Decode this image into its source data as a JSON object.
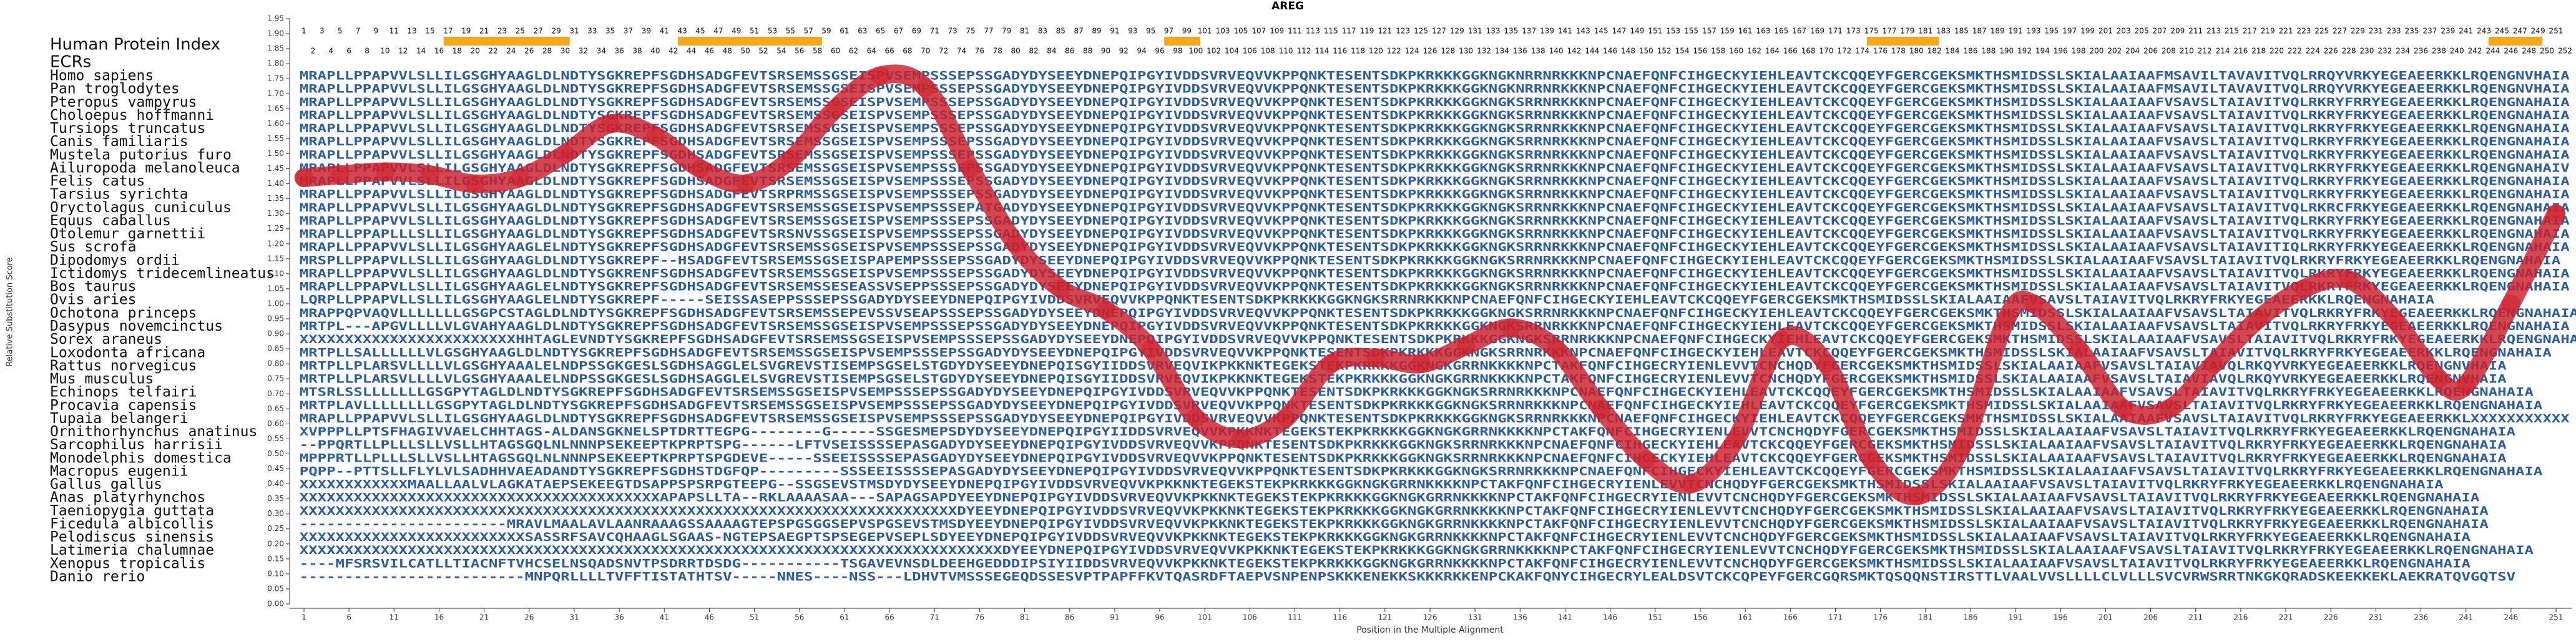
{
  "title": "AREG",
  "y_axis": {
    "label": "Relative Substitution Score",
    "ylim": [
      0,
      1.95
    ],
    "yticks": [
      {
        "value": 0,
        "label": "0.00"
      },
      {
        "value": 0.05,
        "label": "0.05"
      },
      {
        "value": 0.1,
        "label": "0.10"
      },
      {
        "value": 0.15,
        "label": "0.15"
      },
      {
        "value": 0.2,
        "label": "0.20"
      },
      {
        "value": 0.25,
        "label": "0.25"
      },
      {
        "value": 0.3,
        "label": "0.30"
      },
      {
        "value": 0.35,
        "label": "0.35"
      },
      {
        "value": 0.4,
        "label": "0.40"
      },
      {
        "value": 0.45,
        "label": "0.45"
      },
      {
        "value": 0.5,
        "label": "0.50"
      },
      {
        "value": 0.55,
        "label": "0.55"
      },
      {
        "value": 0.6,
        "label": "0.60"
      },
      {
        "value": 0.65,
        "label": "0.65"
      },
      {
        "value": 0.7,
        "label": "0.70"
      },
      {
        "value": 0.75,
        "label": "0.75"
      },
      {
        "value": 0.8,
        "label": "0.80"
      },
      {
        "value": 0.85,
        "label": "0.85"
      },
      {
        "value": 0.9,
        "label": "0.90"
      },
      {
        "value": 0.95,
        "label": "0.95"
      },
      {
        "value": 1,
        "label": "1.00"
      },
      {
        "value": 1.05,
        "label": "1.05"
      },
      {
        "value": 1.1,
        "label": "1.10"
      },
      {
        "value": 1.15,
        "label": "1.15"
      },
      {
        "value": 1.2,
        "label": "1.20"
      },
      {
        "value": 1.25,
        "label": "1.25"
      },
      {
        "value": 1.3,
        "label": "1.30"
      },
      {
        "value": 1.35,
        "label": "1.35"
      },
      {
        "value": 1.4,
        "label": "1.40"
      },
      {
        "value": 1.45,
        "label": "1.45"
      },
      {
        "value": 1.5,
        "label": "1.50"
      },
      {
        "value": 1.55,
        "label": "1.55"
      },
      {
        "value": 1.6,
        "label": "1.60"
      },
      {
        "value": 1.65,
        "label": "1.65"
      },
      {
        "value": 1.7,
        "label": "1.70"
      },
      {
        "value": 1.75,
        "label": "1.75"
      },
      {
        "value": 1.8,
        "label": "1.80"
      },
      {
        "value": 1.85,
        "label": "1.85"
      },
      {
        "value": 1.9,
        "label": "1.90"
      },
      {
        "value": 1.95,
        "label": "1.95"
      }
    ]
  },
  "x_axis": {
    "label": "Position in the Multiple Alignment",
    "xlim": [
      1,
      252
    ],
    "xticks": [
      1,
      6,
      11,
      16,
      21,
      26,
      31,
      36,
      41,
      46,
      51,
      56,
      61,
      66,
      71,
      76,
      81,
      86,
      91,
      96,
      101,
      106,
      111,
      116,
      121,
      126,
      131,
      136,
      141,
      146,
      151,
      156,
      161,
      166,
      171,
      176,
      181,
      186,
      191,
      196,
      201,
      206,
      211,
      216,
      221,
      226,
      231,
      236,
      241,
      246,
      251
    ]
  },
  "curve": {
    "x": [
      1,
      5,
      10,
      15,
      20,
      25,
      30,
      35,
      40,
      45,
      50,
      55,
      60,
      65,
      70,
      75,
      80,
      85,
      90,
      95,
      100,
      105,
      110,
      115,
      120,
      125,
      130,
      135,
      140,
      145,
      150,
      155,
      160,
      165,
      170,
      175,
      180,
      185,
      190,
      193,
      198,
      203,
      208,
      213,
      218,
      223,
      228,
      233,
      238,
      241,
      246,
      251
    ],
    "values": [
      1.42,
      1.43,
      1.44,
      1.43,
      1.4,
      1.42,
      1.5,
      1.6,
      1.56,
      1.45,
      1.4,
      1.48,
      1.65,
      1.76,
      1.72,
      1.45,
      1.2,
      1.05,
      0.98,
      0.85,
      0.62,
      0.55,
      0.62,
      0.8,
      0.82,
      0.8,
      0.86,
      0.92,
      0.85,
      0.65,
      0.48,
      0.4,
      0.55,
      0.88,
      0.8,
      0.48,
      0.36,
      0.52,
      0.95,
      1.0,
      0.85,
      0.65,
      0.65,
      0.8,
      0.95,
      1.05,
      1.08,
      0.95,
      0.75,
      0.73,
      1.0,
      1.3
    ],
    "color": "#cc1f2a"
  },
  "index_label": "Human Protein Index",
  "human_index": [
    1,
    2,
    3,
    4,
    5,
    6,
    7,
    8,
    9,
    10,
    11,
    12,
    13,
    14,
    15,
    16,
    17,
    18,
    19,
    20,
    21,
    22,
    23,
    24,
    25,
    26,
    27,
    28,
    29,
    30,
    31,
    32,
    33,
    34,
    35,
    36,
    37,
    38,
    39,
    40,
    41,
    42,
    43,
    44,
    45,
    46,
    47,
    48,
    49,
    50,
    51,
    52,
    53,
    54,
    55,
    56,
    57,
    58,
    59,
    60,
    61,
    62,
    63,
    64,
    65,
    66,
    67,
    68,
    69,
    70,
    71,
    72,
    73,
    74,
    75,
    76,
    77,
    78,
    79,
    80,
    81,
    82,
    83,
    84,
    85,
    86,
    87,
    88,
    89,
    90,
    91,
    92,
    93,
    94,
    95,
    96,
    97,
    98,
    99,
    100,
    101,
    102,
    103,
    104,
    105,
    106,
    107,
    108,
    109,
    110,
    111,
    112,
    113,
    114,
    115,
    116,
    117,
    118,
    119,
    120,
    121,
    122,
    123,
    124,
    125,
    126,
    127,
    128,
    129,
    130,
    131,
    132,
    133,
    134,
    135,
    136,
    137,
    138,
    139,
    140,
    141,
    142,
    143,
    144,
    145,
    146,
    147,
    148,
    149,
    150,
    151,
    152,
    153,
    154,
    155,
    156,
    157,
    158,
    159,
    160,
    161,
    162,
    163,
    164,
    165,
    166,
    167,
    168,
    169,
    170,
    171,
    172,
    173,
    174,
    175,
    176,
    177,
    178,
    179,
    180,
    181,
    182,
    183,
    184,
    185,
    186,
    187,
    188,
    189,
    190,
    191,
    192,
    193,
    194,
    195,
    196,
    197,
    198,
    199,
    200,
    201,
    202,
    203,
    204,
    205,
    206,
    207,
    208,
    209,
    210,
    211,
    212,
    213,
    214,
    215,
    216,
    217,
    218,
    219,
    220,
    221,
    222,
    223,
    224,
    225,
    226,
    227,
    228,
    229,
    230,
    231,
    232,
    233,
    234,
    235,
    236,
    237,
    238,
    239,
    240,
    241,
    242,
    243,
    244,
    245,
    246,
    247,
    248,
    249,
    250,
    251,
    252
  ],
  "ecr_label": "ECRs",
  "ecrs": [
    [
      17,
      30
    ],
    [
      43,
      58
    ],
    [
      97,
      100
    ],
    [
      175,
      182
    ],
    [
      244,
      249
    ]
  ],
  "ecr_color": "#f5a81c",
  "species": [
    {
      "name": "Homo sapiens",
      "sequence": "MRAPLLPPAPVVLSLLILGSGHYAAGLDLNDTYSGKREPFSGDHSADGFEVTSRSEMSSGSEISPVSEMPSSSEPSSGADYDYSEEYDNEPQIPGYIVDDSVRVEQVVKPPQNKTESENTSDKPKRKKKGGKNGKNRRNRKKKNPCNAEFQNFCIHGECKYIEHLEAVTCKCQQEYFGERCGEKSMKTHSMIDSSLSKIALAAIAAFMSAVILTAVAVITVQLRRQYVRKYEGEAEERKKLRQENGNVHAIA"
    },
    {
      "name": "Pan troglodytes",
      "sequence": "MRAPLLPPAPVVLSLLILGSGHYAAGLDLNDTYSGKREPFSGDHSADGFEVTSRSEMSSGSEISPVSEMPSSSEPSSGADYDYSEEYDNEPQIPGYIVDDSVRVEQVVKPPQNKTESENTSDKPKRKKKGGKNGKNRRNRKKKNPCNAEFQNFCIHGECKYIEHLEAVTCKCQQEYFGERCGEKSMKTHSMIDSSLSKIALAAIAAFMSAVILTAVAVITVQLRRQYVRKYEGEAEERKKLRQENGNVHAIA"
    },
    {
      "name": "Pteropus vampyrus",
      "sequence": "MRAPLLPPAPVVLSLLILGSGHYAAGLDLNDTYSGKREPFSGDHSADGFEVTSRSEMSSGSEISPVSEMPSSSEPSSGADYDYSEEYDNEPQIPGYIVDDSVRVEQVVKPPQNKTESENTSDKPKRKKKGGKNGKSRRNRKKKNPCNAEFQNFCIHGECKYIEHLEAVTCKCQQEYFGERCGEKSMKTHSMIDSSLSKIALAAIAAFVSAVSLTAIAVITVQLRKRYFRRYEGEAEERKKLRQENGNAHAIA"
    },
    {
      "name": "Choloepus hoffmanni",
      "sequence": "MRAPLLPPAPVVLSLLILGSGHYAAGLDLNDTYSGKREPFSGDHSADGFEVTSRSEMSSGSEISPVSEMPSSSEPSSGADYDYSEEYDNEPQIPGYIVDDSVRVEQVVKPPQNKTESENTSDKPKRKKKGGKNGKSRRNRKKKNPCNAEFQNFCIHGECKYIEHLEAVTCKCQQEYFGERCGEKSMKTHSMIDSSLSKIALAAIAAFVSAVSLTAIAVITVQLRKRYFRKYEGEAEERKKLRQENGNAHAIA"
    },
    {
      "name": "Tursiops truncatus",
      "sequence": "MRAPLLPPAPVVLSLLILGSGHYAAGLDLNDTYSGKREPFSGDHSADGFEVTSRSEMSSGSEISPVSEMPSSSEPSSGADYDYSEEYDNEPQIPGYIVDDSVRVEQVVKPPQNKTESENTSDKPKRKKKGGKNGKSRRNRKKKNPCNAEFQNFCIHGECKYIEHLEAVTCKCQQEYFGERCGEKSMKTHSMIDSSLSKIALAAIAAFVSAVSLTAIAVITVQLRKRYFRKYEGEAEERKKLRQENGNAHAIA"
    },
    {
      "name": "Canis familiaris",
      "sequence": "MRAPLLPPAPVVLSLLILGSGHYAAGLDLNDTYSGKREPFSGDHSADGFEVTSRSEMSSGSEISPVSEMPSSSEPSSGADYDYSEEYDNEPQIPGYIVDDSVRVEQVVKPPQNKTESENTSDKPKRKKKGGKNGKSRRNRKKKNPCNAEFQNFCIHGECKYIEHLEAVTCKCQQEYFGERCGEKSMKTHSMIDSSLSKIALAAIAAFVSAVSLTAIAVITVQLRKRYFRKYEGEAEERKKLRQENGNAHAIA"
    },
    {
      "name": "Mustela putorius furo",
      "sequence": "MRAPLLPPAPVVLSLLILGSGHYAAGLDLNDTYSGKREPFSGDHSADGFEVTSRSEMSSGSEISPVSEMPSSSEPSSGADYDYSEEYDNEPQIPGYIVDDSVRVEQVVKPPQNKTESENTSDKPKRKKKGGKNGKSRRNRKKKNPCNAEFQNFCIHGECKYIEHLEAVTCKCQQEYFGERCGEKSMKTHSMIDSSLSKIALAAIAAFVSAVSLTAIAVITVQLRKRYFRKYEGEAEERKKLRQENGNAHAIA"
    },
    {
      "name": "Ailuropoda melanoleuca",
      "sequence": "MRAPLLPPAPVVLSLLILGSGHYAAGLDLNDTYSGKREPFSGDHSADGFEVTSRSEMSSGSEISPVSEMPSSSEPSSGADYDYSEEYDNEPQIPGYIVDDSVRVEQVVKPPQNKTESENTSDKPKRKKKGGKNGKSRRNRKKKNPCNAEFQNFCIHGECKYIEHLEAVTCKCQQEYFGERCGEKSMKTHSMIDSSLSKIALAAIAAFVSAVSLTAIAVITVQLRKRYFRKYEGEAEERKKLRQENGNAHAIV"
    },
    {
      "name": "Felis catus",
      "sequence": "MRAPLLPPAPVVLSLLILGSGHYAAGLDLNDTYSGKREPFSGDHSADGFEVTSRSEMSSGSEISPVSEMPSSSEPSSGADYDYSEEYDNEPQIPGYIVDDSVRVEQVVKPPQNKTESENTSDKPKRKKKGGKNGKSRRNRKKKNPCNAEFQNFCIHGECKYIEHLEAVTCKCQQEYFGERCGEKSMKTHSMIDSSLSKIALAAIAAFVSAVSLTAIAVITVQLRKRYFRKYEGEAEERKKLRQENGNAHAIA"
    },
    {
      "name": "Tarsius syrichta",
      "sequence": "MRAPLLPPAPVVLSLLILGSGHYAAGLDLNDTYSGKREPFSGDHSADGFEVTSRPRMSSGSEISPVSEMPSSSEPSSGADYDYSEEYDNEPQIPGYIVDDSVRVEQVVKPPQNKTESENTSDKPKRKKKGGKNGKSRRNRKKKNPCNAEFQNFCIHGECKYIEHLEAVTCKCQQEYFGERCGEKSMKTHSMIDSSLSKIALAAIAAFVSAVSLTAIAVITVQLRKRYFRKYEGEAEERKKLRQENGNAHAIA"
    },
    {
      "name": "Oryctolagus cuniculus",
      "sequence": "MRAPLLPPAPVVLSLLILGSGHYAAGLDLNDTYSGKREPFSGDHSADGFEVTSRSEMSSGSEISPVSEMPSSSEPATGADYDYSEEYDNEPQIPGYIVDDSVRVEQVVKPPQNKTESENTSDKPKRKKKGGKNGKSRRNRKKKNPCNAEFQNFCIHGECKYIEHLEAVTCKCQQEYFGERCGEKSMKTHSMIDSSLSKIALAAIAAFVSAVSLTAIAVITVQLRKRCFRKYEGEAEERKKLRQENGNAHAIA"
    },
    {
      "name": "Equus caballus",
      "sequence": "MRAPLLPPAPVVLSLLILGSGHYAAGLDLNDTYSGKREPFSGDHSADGFEVTSRSEMSSGSEISPVSEMPSSSEPSSGADYDYSEEYDNEPQIPGYIVDDSVRVEQVVKPPQNKTESENTSDKPKRKKKGGKNGKSRRNRKKKNPCNAEFQNFCIHGECKYIEHLEAVTCKCQQEYFGERCGEKSMKTHSMIDSSLSKIALAAIAAFVSAVSLTAIAVITVQLRKRYFRKYEGEAEERKKLRQENGNAHAIA"
    },
    {
      "name": "Otolemur garnettii",
      "sequence": "MRAPLLPPAPLLLSLLILGSGHYAAGLDLNDTYSGKREPFSGDHSADGFEVTSRSNVSSGSEISPVSEMPSSSEPSSGADYDYSEEYDNEPQIPGYIVDDSVRVEQVVKPPQNKTESENTSDKPKRKKKGGKNGKSRRNRKKKNPCNAEFQNFCIHGECKYIEHLEAVTCKCQQEYFGERCGEKSMKTHSMIDSSLSKIALAAIAAFVSAVSLTAIAVITVQLRKRYFRKYEGEAEERKKLRQENGNAHAIA"
    },
    {
      "name": "Sus scrofa",
      "sequence": "MRAPLLPPAPVVLSLLILGSGHYAAGLELNDTYSGKREPFSGDHSADGFEVTSRSEMSSGSEISPVSEMPSSSEPSSGADYDYSEEYDNEPQIPGYIVDDSVRVEQVVKPPQNKTESENTSDKPKRKKKGGKNGKSRRNRKKKNPCNAEFQNFCIHGECKYIEHLEAVTCKCQQEYFGERCGEKSMKTHSMIDSSLSKIALAAIAAFVSAVSLTAIAVITIQLRKRYFRKYEGEAEERKKLRQENGNAHAIA"
    },
    {
      "name": "Dipodomys ordii",
      "sequence": "MRSPLLPPAPVLLSLLILGSGHYAAGLDLNDTYSGKREPF--HSADGFEVTSRSEMSSGSEISPAPEMPSSSEPSSGADYDYSEEYDNEPQIPGYIVDDSVRVEQVVKPPQNKTESENTSDKPKRKKKGGKNGKSRRNRKKKNPCNAEFQNFCIHGECKYIEHLEAVTCKCQQEYFGERCGEKSMKTHSMIDSSLSKIALAAIAAFVSAVSLTAIAVITVQLRKRYFRKYEGEAEERKKLRQENGNAHAIA"
    },
    {
      "name": "Ictidomys tridecemlineatus",
      "sequence": "MRAPLLPPAPVVLSLLILGSGHYAAGLDLNDTYSGKRENFSGDHSADGFEVTSRSEMSSGSEISPVSEMPSSSEPSSGADYDYSEEYDNEPQIPGYIVDDSVRVEQVVKPPQNKTESENTSDKPKRKKKGGKNGKSRRNRKKKNPCNAEFQNFCIHGECKYIEHLEAVTCKCQQEYFGERCGEKSMKTHSMIDSSLSKIALAAIAAFVSAVSLTAIAVITVQLRKRYFRKYEGEAEERKKLRQENGNAHAIA"
    },
    {
      "name": "Bos taurus",
      "sequence": "MRAPLLPPAPVLLSLLILGSGHYAAGLELNDTYSGKREPFSGDHSADGFEVTSRSEMSSESEASSVSEPPSSSEPSSGADYDYSEEYDNEPQIPGYIVDDSVRVEQVVKPPQNKTESENTSDKPKRKKKGGKNGKSRRNRKKKNPCNAEFQNFCIHGECKYIEHLEAVTCKCQQEYFGERCGEKSMKTHSMIDSSLSKIALAAIAAFVSAVSLTAIAVITVQLRKRYFRKYEGEAEERKKLRQENGNAHAIA"
    },
    {
      "name": "Ovis aries",
      "sequence": "LQRPLLPPAPVLLSLLILGSGHYAAGLELNDTYSGKREPF-----SEISSASEPPSSSEPSSGADYDYSEEYDNEPQIPGYIVDDSVRVEQVVKPPQNKTESENTSDKPKRKKKGGKNGKSRRNRKKKNPCNAEFQNFCIHGECKYIEHLEAVTCKCQQEYFGERCGEKSMKTHSMIDSSLSKIALAAIAAFVSAVSLTAIAVITVQLRKRYFRKYEGEAEERKKLRQENGNAHAIA"
    },
    {
      "name": "Ochotona princeps",
      "sequence": "MRAPPQPVAQVLLLLLLLGSGPCSTAGLDLNDTYSGKREPFSGDHSADGFEVTSRSEMSSEPEVSSVSEAPSSSEPSSGADYDYSEEYDNEPQIPGYIVDDSVRVEQVVKPPQNKTESENTSDKPKRKKKGGKNGKSRRNRKKKNPCNAEFQNFCIHGECKYIEHLEAVTCKCQQEYFGERCGEKSMKTHSMIDSSLSKIALAAIAAFVSAVSLTAIAVITVQLRKRYFRKYEGEAEERKKLRQENGNAHAIA"
    },
    {
      "name": "Dasypus novemcinctus",
      "sequence": "MRTPL---APGVLLLLVLGVAHYAAGLDLNDTYSGKREPFSGDHSADGFEVTSRSEMSSGSEISPVSEMPSSSEPSSGADYDYSEEYDNEPQIPGYIVDDSVRVEQVVKPPQNKTESENTSDKPKRKKKGGKNGKSRRNRKKKNPCNAEFQNFCIHGECKYIEHLEAVTCKCQQEYFGERCGEKSMKTHSMIDSSLSKIALAAIAAFVSAVSLTAIAVITVQLRKRYFRKYEGEAEERKKLRQENGNAHAIA"
    },
    {
      "name": "Sorex araneus",
      "sequence": "XXXXXXXXXXXXXXXXXXXXXXXXHHTAGLEVNDTYSGKREPFSGDHSADGFEVTSRSEMSSGSEISPVSEMPSSSEPSSGADYDYSEEYDNEPQIPGYIVDDSVRVEQVVKPPQNKTESENTSDKPKRKKKGGKNGKSRRNRKKKNPCNAEFQNFCIHGECKYIEHLEAVTCKCQQEYFGERCGEKSMKTHSMIDSSLSKIALAAIAAFVSAVSLTAIAVITVQLRKRYFRKYEGEAEERKKLRQENGNAHAIA"
    },
    {
      "name": "Loxodonta africana",
      "sequence": "MRTPLLSALLLLLLVLGSGHYAAGLDLNDTYSGKREPFSGDHSADGFEVTSRSEMSSGSEISPVSEMPSSSEPSSGADYDYSEEYDNEPQIPGYIVDDSVRVEQVVKPPQNKTESENTSDKPKRKKKGGKNGKSRRNRKKKNPCNAEFQNFCIHGECKYIEHLEAVTCKCQQEYFGERCGEKSMKTHSMIDSSLSKIALAAIAAFVSAVSLTAIAVITVQLRKRYFRKYEGEAEERKKLRQENGNAHAIA"
    },
    {
      "name": "Rattus norvegicus",
      "sequence": "MRTPLLPLARSVLLLLVLGSGHYAAALELNDPSSGKGESLSGDHSAGGLELSVGREVSTISEMPSGSELSTGDYDYSEEYDNEPQISGYIIDDSVRVEQVIKPKKNKTEGEKSTEKPKRKKKGGKNGKGRRNKKKKNPCTAKFQNFCIHGECRYIENLEVVTCNCHQDYFGERCGEKSMKTHSMIDSSLSKIALAAIAAFVSAVSLTAIAVIAVQLRKQYVRKYEGEAEERKKLRQENGNVHAIA"
    },
    {
      "name": "Mus musculus",
      "sequence": "MRTPLLPLARSVLLLLVLGSGHYAAALELNDPSSGKGESLSGDHSAGGLELSVGREVSTISEMPSGSELSTGDYDYSEEYDNEPQISGYIIDDSVRVEQVIKPKKNKTEGEKSTEKPKRKKKGGKNGKGRRNKKKKNPCTAKFQNFCIHGECRYIENLEVVTCNCHQDYFGERCGEKSMKTHSMIDSSLSKIALAAIAAFVSAVSLTAIAVIAVQLRKQYVRKYEGEAEERKKLRQENGNVHAIA"
    },
    {
      "name": "Echinops telfairi",
      "sequence": "MTSRLSSLLLLLLLGSGPYTAGLDLNDTYSGKREPFSGDHSADGFEVTSRSEMSSGSEISPVSEMPSSSEPSSGADYDYSEEYDNEPQIPGYIVDDSVRVEQVVKPPQNKTESENTSDKPKRKKKGGKNGKSRRNRKKKNPCNAEFQNFCIHGECKYIEHLEAVTCKCQQEYFGERCGEKSMKTHSMIDSSLSKIALAAIAAFVSAVSLTAIAVITVQLRKRYFRKYEGEAEERKKLRQENGNAHAIA"
    },
    {
      "name": "Procavia capensis",
      "sequence": "MRTPLAVLLLLLLLLGSGPYTAGLDLNDTYSGKREPFSGDHSADGFEVTSRSEMSSGSEISPVSEMPSSSEPSSGADYDYSEEYDNEPQIPGYIVDDSVRVEQVVKPPQNKTESENTSDKPKRKKKGGKNGKSRRNRKKKNPCNAEFQNFCIHGECKYIEHLEAVTCKCQQEYFGERCGEKSMKTHSMIDSSLSKIALAAIAAFVSAVSLTAIAVITVQLRKRYFRKYEGEAEERKKLRQENGNAHAIA"
    },
    {
      "name": "Tupaia belangeri",
      "sequence": "MRAPLLPPAPVVLSLLILGSGHYAAGLDLNDTYSGKREPFSGDHSADGFEVTSRSEMSSGSEISPVSEMPSSSEPSSGADYDYSEEYDNEPQIPGYIVDDSVRVEQVVKPPQNKTESENTSDKPKRKKKGGKNGKSRRNRKKKNPCNAEFQNFCIHGECKYIEHLEAVTCKCQQEYFGERCGEKSMKTHSMIDSSLSKIALAAIAAFVSAVSLTAIAVITVQLRKRYFRKYEGEAEERKKLXXXXXXXXXXX"
    },
    {
      "name": "Ornithorhynchus anatinus",
      "sequence": "XVPPPLLPTSFHAGIVVAELCHHTAGS-ALDANSGKNELSPTDRTTEGPG--------G-----SSGESMEPSDYDYSEEYDNEPQIPGYIIDDSVRVEQVVKPKKNKTEGEKSTEKPKRKKKGGKNGKGRRNKKKKNPCTAKFQNFCIHGECRYIENLEVVTCNCHQDYFGERCGEKSMKTHSMIDSSLSKIALAAIAAFVSAVSLTAIAVITVQLRKRYFRKYEGEAEERKKLRQENGNAHAIA"
    },
    {
      "name": "Sarcophilus harrisii",
      "sequence": "--PPQRTLLPLLLSLLVSLLHTAGSGQLNLNNNPSEKEEPTKPRPTSPG------LFTVSEISSSSEPASGADYDYSEEYDNEPQIPGYIVDDSVRVEQVVKPPQNKTESENTSDKPKRKKKGGKNGKSRRNRKKKNPCNAEFQNFCIHGECKYIEHLEAVTCKCQQEYFGERCGEKSMKTHSMIDSSLSKIALAAIAAFVSAVSLTAIAVITVQLRKRYFRKYEGEAEERKKLRQENGNAHAIA"
    },
    {
      "name": "Monodelphis domestica",
      "sequence": "MPPPRTLLPLLLSLLVSLLHTAGSGQLNLNNNPSEKEEPTKPRPTSPGDEVE-----SSEEISSSSEPASGADYDYSEEYDNEPQIPGYIVDDSVRVEQVVKPPQNKTESENTSDKPKRKKKGGKNGKSRRNRKKKNPCNAEFQNFCIHGECKYIEHLEAVTCKCQQEYFGERCGEKSMKTHSMIDSSLSKIALAAIAAFVSAVSLTAIAVITVQLRKRYFRKYEGEAEERKKLRQENGNAHAIA"
    },
    {
      "name": "Macropus eugenii",
      "sequence": "PQPP--PTTSLLFLYLVLSADHHVAEADANDTYSGKREPFSGDHSTDGFQP---------SSSEEISSSSEPASGADYDYSEEYDNEPQIPGYIVDDSVRVEQVVKPPQNKTESENTSDKPKRKKKGGKNGKSRRNRKKKNPCNAEFQNFCIHGECKYIEHLEAVTCKCQQEYFGERCGEKSMKTHSMIDSSLSKIALAAIAAFVSAVSLTAIAVITVQLRKRYFRKYEGEAEERKKLRQENGNAHAIA"
    },
    {
      "name": "Gallus gallus",
      "sequence": "XXXXXXXXXXXXMAALLAALVLAGKATAEPSEKEEGTDSAPPSPSRPGTEEPG--SSGSEVSTMSDYDYSEEYDNEPQIPGYIVDDSVRVEQVVKPKKNKTEGEKSTEKPKRKKKGGKNGKGRRNKKKKNPCTAKFQNFCIHGECRYIENLEVVTCNCHQDYFGERCGEKSMKTHSMIDSSLSKIALAAIAAFVSAVSLTAIAVITVQLRKRYFRKYEGEAEERKKLRQENGNAHAIA"
    },
    {
      "name": "Anas platyrhynchos",
      "sequence": "XXXXXXXXXXXXXXXXXXXXXXXXXXXXXXXXXXXXXXXXAPAPSLLTA--RKLAAAASAA---SAPAGSAPDYEEYDNEPQIPGYIVDDSVRVEQVVKPKKNKTEGEKSTEKPKRKKKGGKNGKGRRNKKKKNPCTAKFQNFCIHGECRYIENLEVVTCNCHQDYFGERCGEKSMKTHSMIDSSLSKIALAAIAAFVSAVSLTAIAVITVQLRKRYFRKYEGEAEERKKLRQENGNAHAIA"
    },
    {
      "name": "Taeniopygia guttata",
      "sequence": "XXXXXXXXXXXXXXXXXXXXXXXXXXXXXXXXXXXXXXXXXXXXXXXXXXXXXXXXXXXXXXXXXXXXXXXXXDYEEYDNEPQIPGYIVDDSVRVEQVVKPKKNKTEGEKSTEKPKRKKKGGKNGKGRRNKKKKNPCTAKFQNFCIHGECRYIENLEVVTCNCHQDYFGERCGEKSMKTHSMIDSSLSKIALAAIAAFVSAVSLTAIAVITVQLRKRYFRKYEGEAEERKKLRQENGNAHAIA"
    },
    {
      "name": "Ficedula albicollis",
      "sequence": "-----------------------MRAVLMAALAVLAANRAAAGSSAAAAGTEPSPGSGGSEPVSPGSEVSTMSDYEEYDNEPQIPGYIVDDSVRVEQVVKPKKNKTEGEKSTEKPKRKKKGGKNGKGRRNKKKKNPCTAKFQNFCIHGECRYIENLEVVTCNCHQDYFGERCGEKSMKTHSMIDSSLSKIALAAIAAFVSAVSLTAIAVITVQLRKRYFRKYEGEAEERKKLRQENGNAHAIA"
    },
    {
      "name": "Pelodiscus sinensis",
      "sequence": "XXXXXXXXXXXXXXXXXXXXXXXXXSASSRFSAVCQHAAGLSGAAS-NGTEPSAEGPTSPSEGEPVSEPLSDYEEYDNEPQIPGYIVDDSVRVEQVVKPKKNKTEGEKSTEKPKRKKKGGKNGKGRRNKKKKNPCTAKFQNFCIHGECRYIENLEVVTCNCHQDYFGERCGEKSMKTHSMIDSSLSKIALAAIAAFVSAVSLTAIAVITVQLRKRYFRKYEGEAEERKKLRQENGNAHAIA"
    },
    {
      "name": "Latimeria chalumnae",
      "sequence": "XXXXXXXXXXXXXXXXXXXXXXXXXXXXXXXXXXXXXXXXXXXXXXXXXXXXXXXXXXXXXXXXXXXXXXXXXXXXXXDYEEYDNEPQIPGYIVDDSVRVEQVVKPKKNKTEGEKSTEKPKRKKKGGKNGKGRRNKKKKNPCTAKFQNFCIHGECRYIENLEVVTCNCHQDYFGERCGEKSMKTHSMIDSSLSKIALAAIAAFVSAVSLTAIAVITVQLRKRYFRKYEGEAEERKKLRQENGNAHAIA"
    },
    {
      "name": "Xenopus tropicalis",
      "sequence": "----MFSRSVILCATLLTIACNFTVHCSELNSQADSNVTPSDRRTDSDG-----------TSGAVEVNSDLDEEHGEDDDIPSIYIIDDSVRVEQVVKPKKNKTEGEKSTEKPKRKKKGGKNGKGRRNKKKKNPCTAKFQNFCIHGECRYIENLEVVTCNCHQDYFGERCGEKSMKTHSMIDSSLSKIALAAIAAFVSAVSLTAIAVITVQLRKRYFRKYEGEAEERKKLRQENGNAHAIA"
    },
    {
      "name": "Danio rerio",
      "sequence": "-------------------------MNPQRLLLLTVFFTISTATHTSV-----NNES----NSS---LDHVTVMSSSEGEQDSSESVPTPAPFFKVTQASRDFTAEPVSNPENPSKKKENEKKSKKKRKKENPCKAKFQNYCIHGECRYLEALDSVTCKCQPEYFGERCGQRSMKTQSQQNSTIRSTTLVAALVVSLLLLCLVLLLSVCVRWSRRTNKGKQRADSKEEKKEKLAEKRATQVGQTSV"
    }
  ],
  "colors": {
    "sequence": "#2b5c9e",
    "species": "#111111",
    "axis": "#333333"
  }
}
